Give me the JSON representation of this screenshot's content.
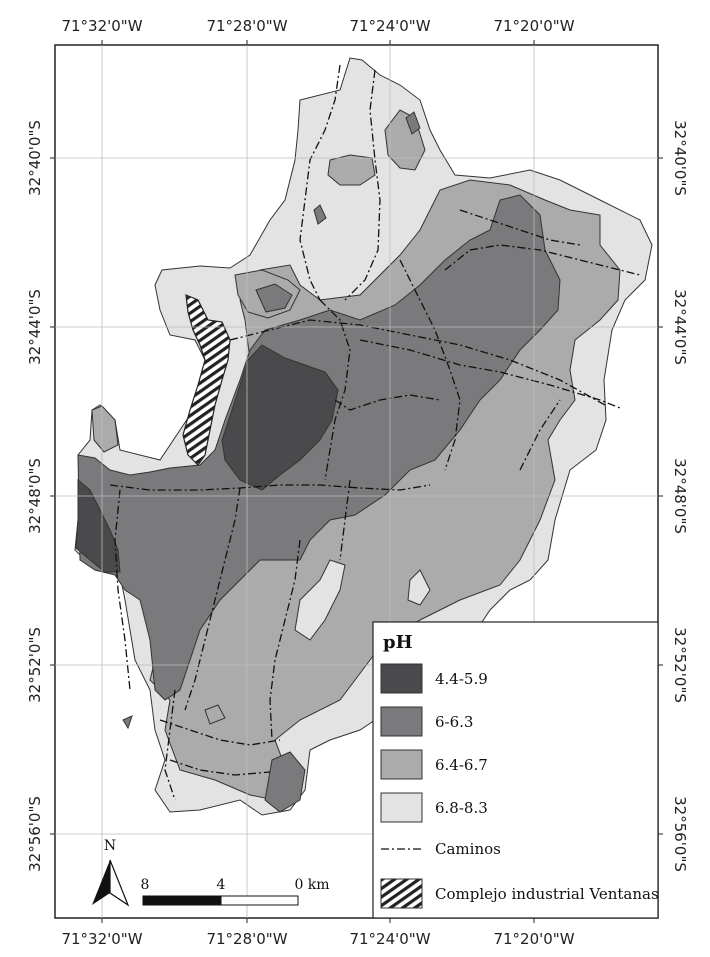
{
  "map": {
    "top_ticks": [
      "71°32'0\"W",
      "71°28'0\"W",
      "71°24'0\"W",
      "71°20'0\"W"
    ],
    "bottom_ticks": [
      "71°32'0\"W",
      "71°28'0\"W",
      "71°24'0\"W",
      "71°20'0\"W"
    ],
    "left_ticks": [
      "32°40'0\"S",
      "32°44'0\"S",
      "32°48'0\"S",
      "32°52'0\"S",
      "32°56'0\"S"
    ],
    "right_ticks": [
      "32°40'0\"S",
      "32°44'0\"S",
      "32°48'0\"S",
      "32°52'0\"S",
      "32°56'0\"S"
    ]
  },
  "legend": {
    "title": "pH",
    "classes": [
      {
        "label": "4.4-5.9",
        "color": "#4a4a4c"
      },
      {
        "label": "6-6.3",
        "color": "#7a7a7c"
      },
      {
        "label": "6.4-6.7",
        "color": "#ababab"
      },
      {
        "label": "6.8-8.3",
        "color": "#e3e3e3"
      }
    ],
    "roads_label": "Caminos",
    "industrial_label": "Complejo industrial Ventanas"
  },
  "north_arrow": {
    "label": "N"
  },
  "scale_bar": {
    "labels": [
      "8",
      "4",
      "0 km"
    ]
  }
}
